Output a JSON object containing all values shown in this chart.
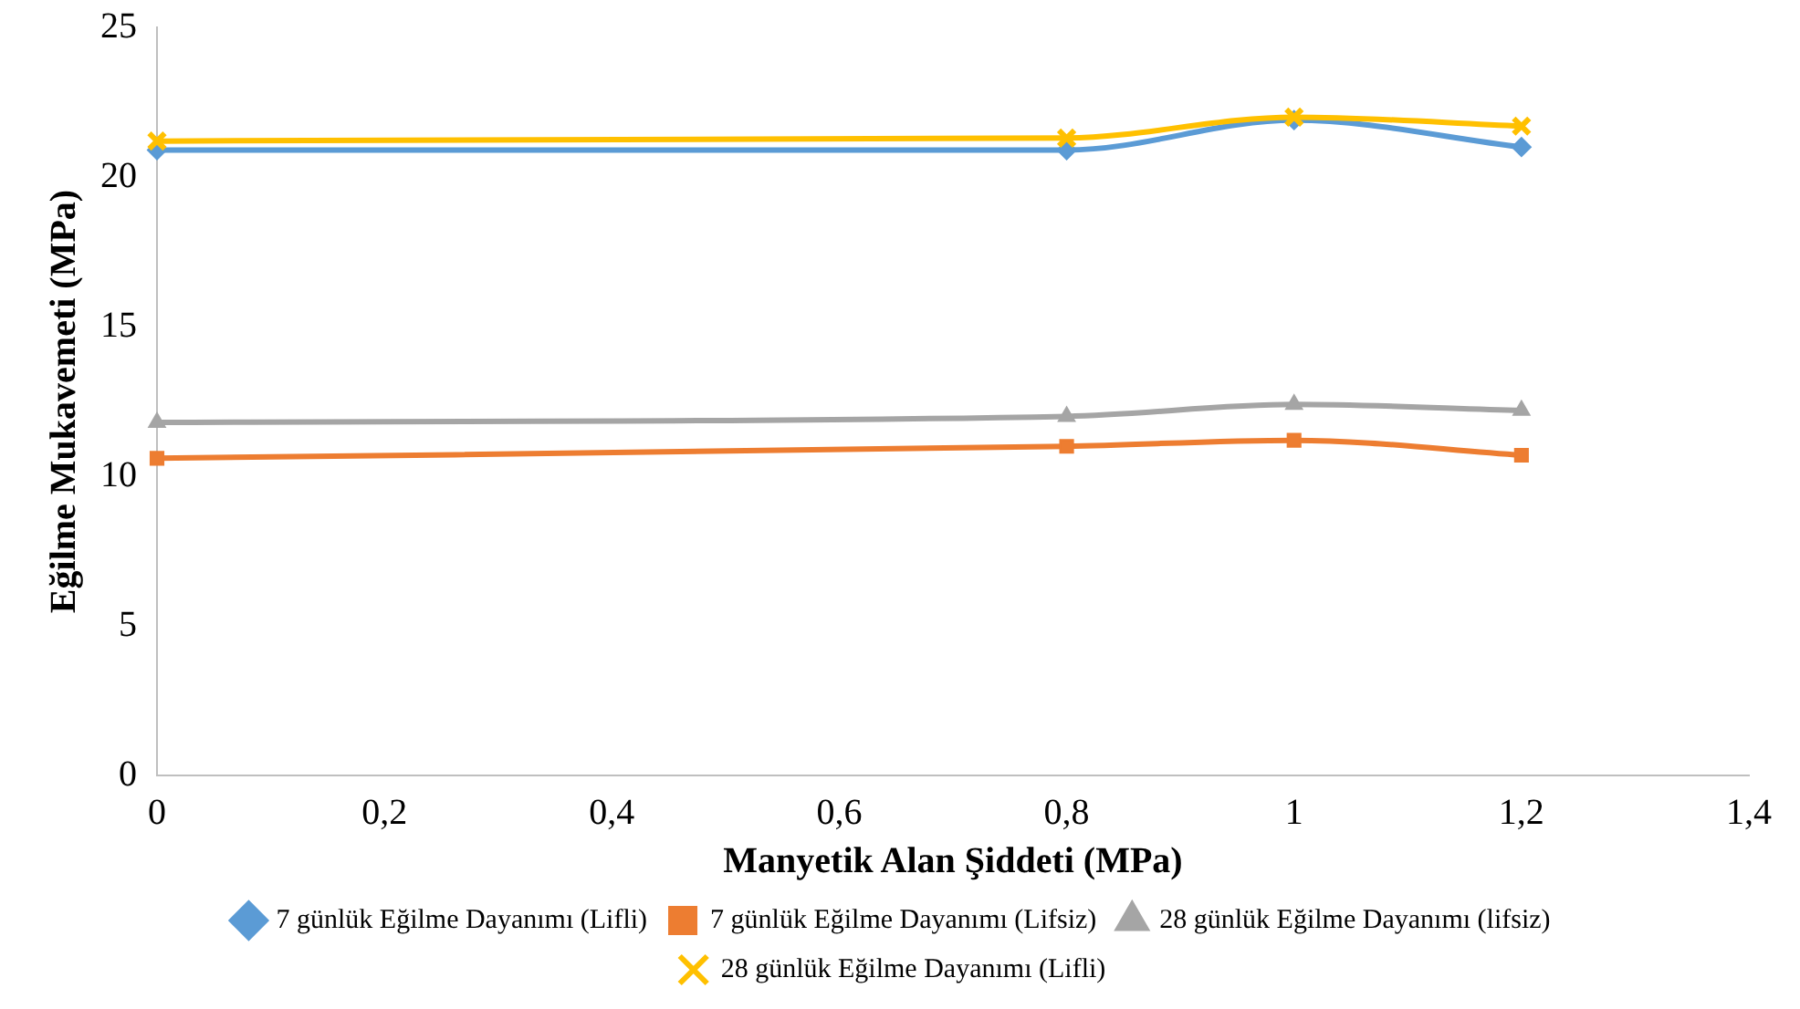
{
  "chart_data": {
    "type": "line",
    "xlabel": "Manyetik Alan Şiddeti (MPa)",
    "ylabel": "Eğilme Mukavemeti (MPa)",
    "x": [
      0,
      0.8,
      1,
      1.2
    ],
    "xlim": [
      0,
      1.4
    ],
    "xticks": [
      0,
      {
        "value": 0.2,
        "label": "0,2"
      },
      {
        "value": 0.4,
        "label": "0,4"
      },
      {
        "value": 0.6,
        "label": "0,6"
      },
      {
        "value": 0.8,
        "label": "0,8"
      },
      1,
      {
        "value": 1.2,
        "label": "1,2"
      },
      {
        "value": 1.4,
        "label": "1,4"
      }
    ],
    "ylim": [
      0,
      25
    ],
    "yticks": [
      0,
      5,
      10,
      15,
      20,
      25
    ],
    "grid": false,
    "legend": "bottom",
    "series": [
      {
        "name": "7 günlük Eğilme Dayanımı (Lifli)",
        "color": "#5b9bd5",
        "marker": "diamond",
        "values": [
          20.9,
          20.9,
          21.9,
          21.0
        ]
      },
      {
        "name": "7 günlük Eğilme Dayanımı (Lifsiz)",
        "color": "#ed7d31",
        "marker": "square",
        "values": [
          10.6,
          11.0,
          11.2,
          10.7
        ]
      },
      {
        "name": "28 günlük Eğilme Dayanımı (lifsiz)",
        "color": "#a5a5a5",
        "marker": "triangle",
        "values": [
          11.8,
          12.0,
          12.4,
          12.2
        ]
      },
      {
        "name": "28 günlük Eğilme Dayanımı (Lifli)",
        "color": "#ffc000",
        "marker": "cross",
        "values": [
          21.2,
          21.3,
          22.0,
          21.7
        ]
      }
    ]
  }
}
